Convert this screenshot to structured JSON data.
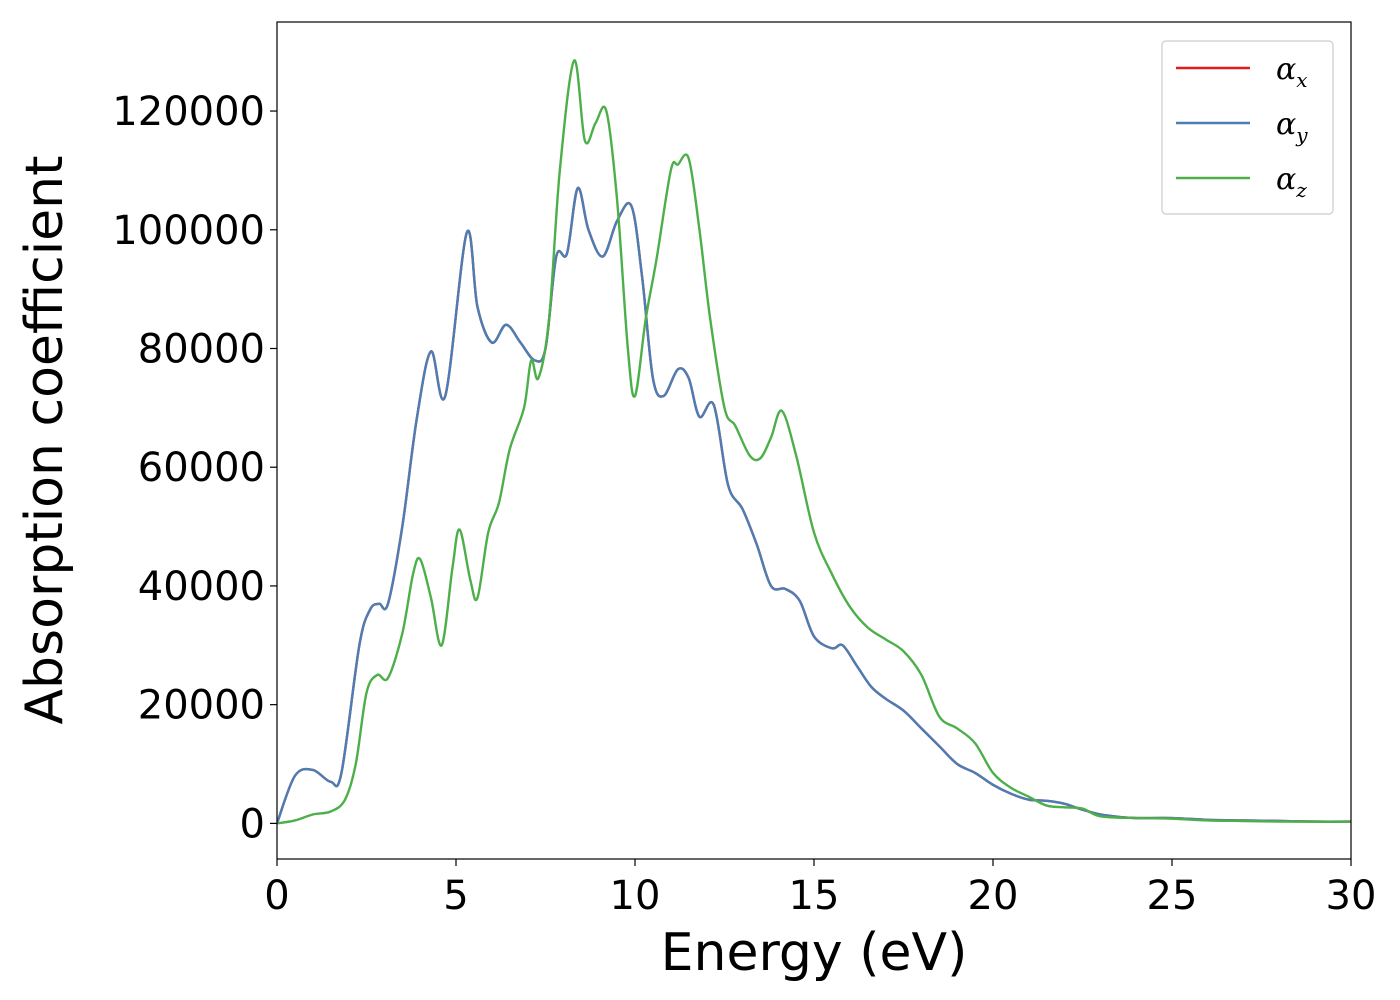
{
  "chart_data": {
    "type": "line",
    "xlabel": "Energy (eV)",
    "ylabel": "Absorption coefficient",
    "xlim": [
      0,
      30
    ],
    "ylim": [
      -6000,
      135000
    ],
    "xticks": [
      0,
      5,
      10,
      15,
      20,
      25,
      30
    ],
    "yticks": [
      0,
      20000,
      40000,
      60000,
      80000,
      100000,
      120000
    ],
    "xtick_labels": [
      "0",
      "5",
      "10",
      "15",
      "20",
      "25",
      "30"
    ],
    "ytick_labels": [
      "0",
      "20000",
      "40000",
      "60000",
      "80000",
      "100000",
      "120000"
    ],
    "grid": false,
    "legend_position": "top-right",
    "series": [
      {
        "name": "α_x",
        "label_base": "α",
        "label_sub": "x",
        "color": "#e41a1c",
        "x": [
          0,
          0.5,
          1.0,
          1.5,
          1.8,
          2.3,
          2.6,
          2.85,
          3.1,
          3.5,
          3.9,
          4.3,
          4.7,
          5.3,
          5.6,
          6.0,
          6.4,
          6.8,
          7.2,
          7.5,
          7.8,
          8.1,
          8.4,
          8.7,
          9.1,
          9.5,
          9.9,
          10.2,
          10.5,
          10.8,
          11.2,
          11.5,
          11.8,
          12.2,
          12.6,
          13.0,
          13.4,
          13.8,
          14.2,
          14.6,
          15.0,
          15.5,
          15.8,
          16.2,
          16.6,
          17.0,
          17.5,
          18.0,
          18.5,
          19.0,
          19.5,
          20.0,
          20.5,
          21.0,
          21.5,
          22.0,
          22.5,
          23.0,
          23.5,
          24.0,
          25.0,
          26.0,
          27.0,
          28.0,
          29.0,
          30.0
        ],
        "y": [
          0,
          8000,
          9000,
          7000,
          8500,
          30000,
          36000,
          37000,
          37000,
          50000,
          68000,
          79500,
          72000,
          99500,
          87000,
          81000,
          84000,
          81000,
          78000,
          80000,
          95500,
          96000,
          107000,
          100000,
          95500,
          101500,
          104000,
          92000,
          75000,
          72000,
          76500,
          75000,
          68500,
          70500,
          57000,
          53000,
          47000,
          40000,
          39500,
          37500,
          31500,
          29500,
          30000,
          26500,
          23000,
          21000,
          19000,
          16000,
          13000,
          10000,
          8500,
          6500,
          5000,
          4000,
          3800,
          3300,
          2300,
          1500,
          1100,
          900,
          900,
          600,
          500,
          400,
          300,
          300
        ]
      },
      {
        "name": "α_y",
        "label_base": "α",
        "label_sub": "y",
        "color": "#4a7eb5",
        "x": [
          0,
          0.5,
          1.0,
          1.5,
          1.8,
          2.3,
          2.6,
          2.85,
          3.1,
          3.5,
          3.9,
          4.3,
          4.7,
          5.3,
          5.6,
          6.0,
          6.4,
          6.8,
          7.2,
          7.5,
          7.8,
          8.1,
          8.4,
          8.7,
          9.1,
          9.5,
          9.9,
          10.2,
          10.5,
          10.8,
          11.2,
          11.5,
          11.8,
          12.2,
          12.6,
          13.0,
          13.4,
          13.8,
          14.2,
          14.6,
          15.0,
          15.5,
          15.8,
          16.2,
          16.6,
          17.0,
          17.5,
          18.0,
          18.5,
          19.0,
          19.5,
          20.0,
          20.5,
          21.0,
          21.5,
          22.0,
          22.5,
          23.0,
          23.5,
          24.0,
          25.0,
          26.0,
          27.0,
          28.0,
          29.0,
          30.0
        ],
        "y": [
          0,
          8000,
          9000,
          7000,
          8500,
          30000,
          36000,
          37000,
          37000,
          50000,
          68000,
          79500,
          72000,
          99500,
          87000,
          81000,
          84000,
          81000,
          78000,
          80000,
          95500,
          96000,
          107000,
          100000,
          95500,
          101500,
          104000,
          92000,
          75000,
          72000,
          76500,
          75000,
          68500,
          70500,
          57000,
          53000,
          47000,
          40000,
          39500,
          37500,
          31500,
          29500,
          30000,
          26500,
          23000,
          21000,
          19000,
          16000,
          13000,
          10000,
          8500,
          6500,
          5000,
          4000,
          3800,
          3300,
          2300,
          1500,
          1100,
          900,
          900,
          600,
          500,
          400,
          300,
          300
        ]
      },
      {
        "name": "α_z",
        "label_base": "α",
        "label_sub": "z",
        "color": "#4daf4a",
        "x": [
          0,
          0.5,
          1.0,
          1.5,
          1.9,
          2.2,
          2.5,
          2.8,
          3.1,
          3.5,
          3.8,
          4.0,
          4.3,
          4.6,
          4.9,
          5.1,
          5.4,
          5.6,
          5.9,
          6.2,
          6.5,
          6.9,
          7.1,
          7.3,
          7.6,
          7.9,
          8.3,
          8.6,
          8.9,
          9.2,
          9.5,
          9.8,
          10.0,
          10.3,
          10.6,
          11.0,
          11.2,
          11.5,
          11.8,
          12.1,
          12.5,
          12.8,
          13.2,
          13.5,
          13.8,
          14.1,
          14.5,
          15.0,
          15.5,
          16.0,
          16.5,
          17.0,
          17.5,
          18.0,
          18.5,
          19.0,
          19.5,
          20.0,
          20.5,
          21.0,
          21.5,
          22.0,
          22.5,
          23.0,
          24.0,
          25.0,
          26.0,
          27.0,
          28.0,
          29.0,
          30.0
        ],
        "y": [
          0,
          500,
          1500,
          2000,
          4000,
          10000,
          22000,
          25000,
          24500,
          32000,
          42000,
          44500,
          38000,
          30000,
          43000,
          49500,
          41000,
          38000,
          49000,
          54000,
          63000,
          70000,
          78000,
          75000,
          85000,
          110000,
          128500,
          115000,
          118000,
          120000,
          105000,
          80000,
          72000,
          85000,
          95000,
          110000,
          111000,
          112000,
          100000,
          85000,
          70000,
          67000,
          62000,
          61500,
          65000,
          69500,
          62000,
          49000,
          42000,
          36500,
          33000,
          31000,
          29000,
          25000,
          18000,
          16000,
          13500,
          8500,
          6000,
          4500,
          3000,
          2700,
          2500,
          1200,
          900,
          800,
          500,
          400,
          300,
          300,
          300
        ]
      }
    ]
  }
}
